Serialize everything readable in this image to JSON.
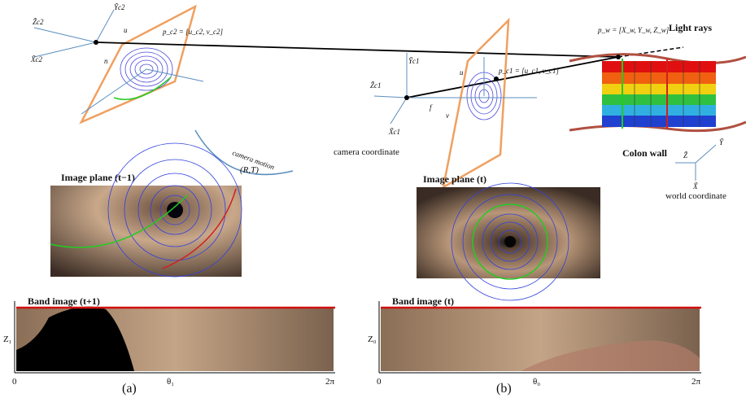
{
  "top": {
    "camera_motion": "camera motion",
    "motion_params": "(R,T)",
    "camera_coordinate": "camera coordinate",
    "light_rays": "Light rays",
    "colon_wall": "Colon wall",
    "world_coordinate": "world coordinate",
    "cam2": {
      "z": "Z̃c2",
      "x": "X̃c2",
      "y": "Ỹc2",
      "u": "u",
      "n": "n",
      "p": "p_c2 = [u_c2, v_c2]"
    },
    "cam1": {
      "z": "Z̃c1",
      "x": "X̃c1",
      "y": "Ỹc1",
      "u": "u",
      "v": "v",
      "f": "f",
      "p": "p_c1 = [u_c1, v_c1]"
    },
    "world": {
      "z": "Z̃",
      "x": "X̃",
      "y": "Ỹ",
      "p": "p_w = [X_w, Y_w, Z_w]"
    }
  },
  "panels": [
    {
      "image_plane_title": "Image plane (t−1)",
      "band_title": "Band image (t+1)",
      "y_label": "Z₁",
      "x_start": "0",
      "x_mid": "θ₁",
      "x_end": "2π",
      "caption": "(a)"
    },
    {
      "image_plane_title": "Image plane (t)",
      "band_title": "Band image (t)",
      "y_label": "Z₀",
      "x_start": "0",
      "x_mid": "θ₀",
      "x_end": "2π",
      "caption": "(b)"
    }
  ]
}
